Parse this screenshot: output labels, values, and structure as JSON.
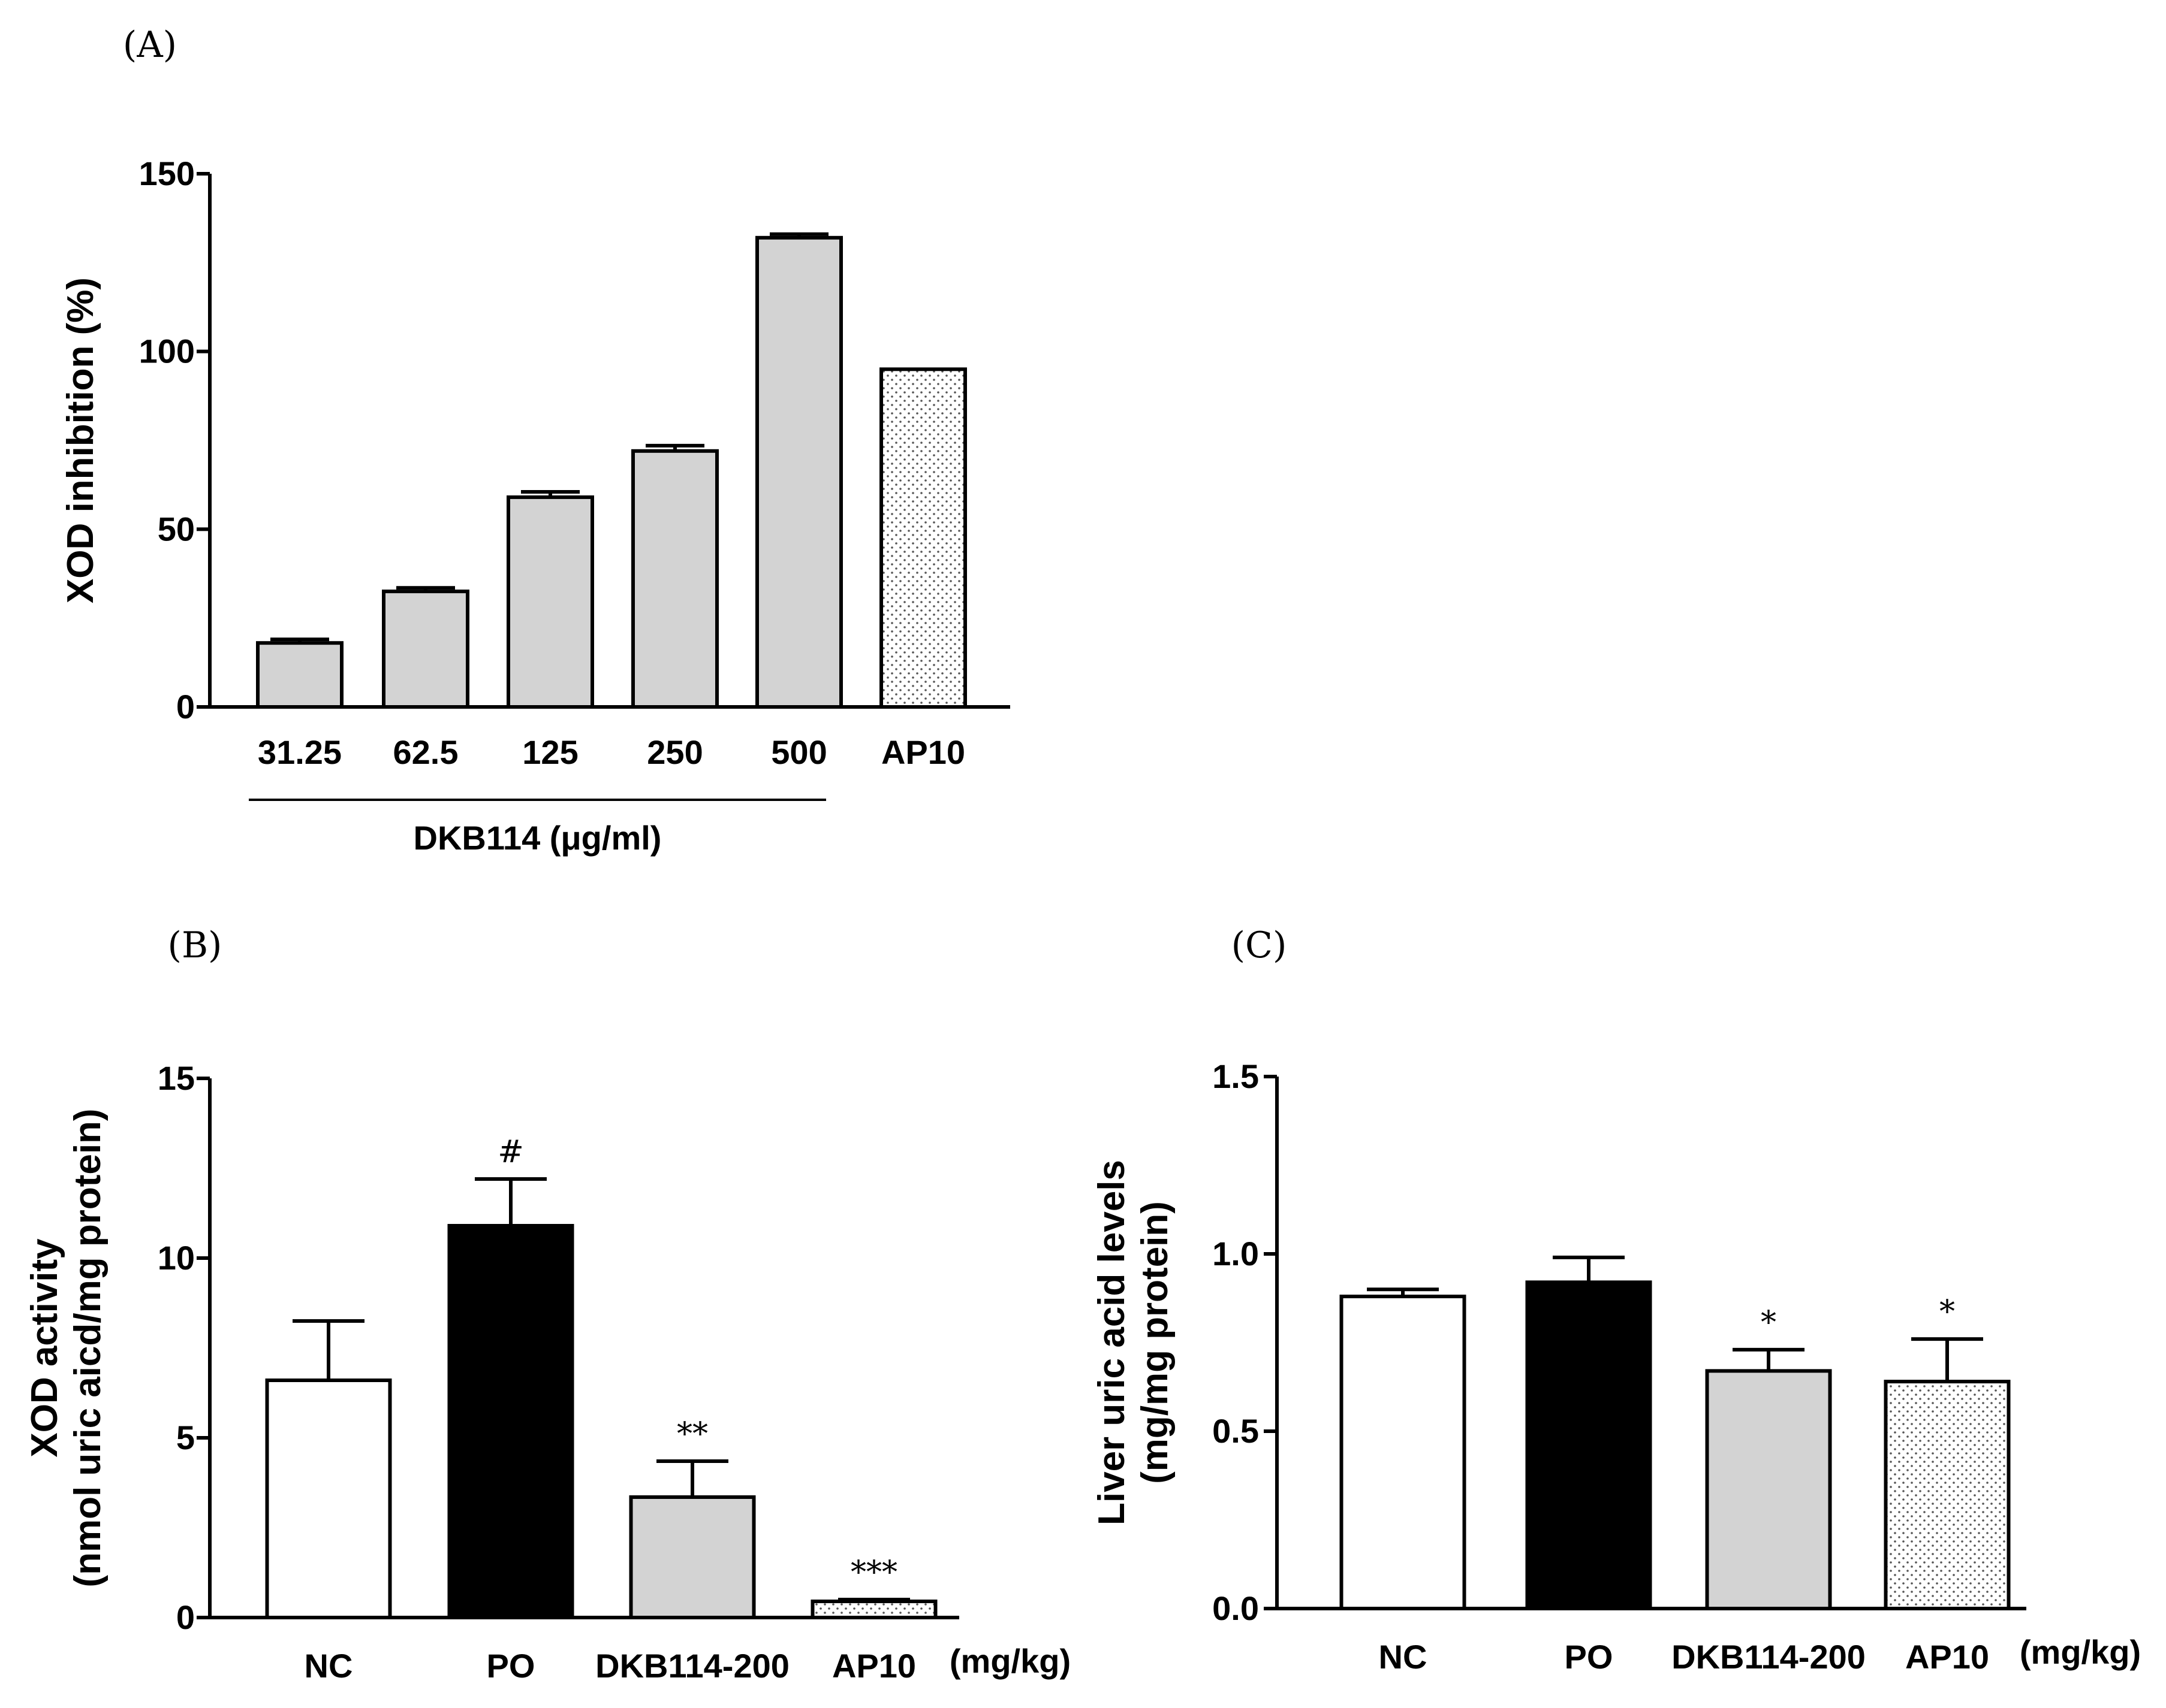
{
  "chart_data": [
    {
      "id": "A",
      "panel_label": "(A)",
      "type": "bar",
      "categories": [
        "31.25",
        "62.5",
        "125",
        "250",
        "500",
        "AP10"
      ],
      "values": [
        18,
        32.5,
        59,
        72,
        132,
        95
      ],
      "errors": [
        1,
        1,
        1.5,
        1.5,
        1,
        0
      ],
      "fills": [
        "gray",
        "gray",
        "gray",
        "gray",
        "gray",
        "dotted"
      ],
      "annotations": [
        "",
        "",
        "",
        "",
        "",
        ""
      ],
      "ylabel": [
        "XOD inhibition (%)"
      ],
      "xlabel": "DKB114  (μg/ml)",
      "unit_label": "",
      "group_span": [
        0,
        4
      ],
      "ylim": [
        0,
        150
      ],
      "yticks": [
        "0",
        "50",
        "100",
        "150"
      ]
    },
    {
      "id": "B",
      "panel_label": "(B)",
      "type": "bar",
      "categories": [
        "NC",
        "PO",
        "DKB114-200",
        "AP10"
      ],
      "values": [
        6.6,
        10.9,
        3.35,
        0.45
      ],
      "errors": [
        1.65,
        1.3,
        1.0,
        0.05
      ],
      "fills": [
        "white",
        "black",
        "gray",
        "dotted"
      ],
      "annotations": [
        "",
        "#",
        "**",
        "***"
      ],
      "ylabel": [
        "XOD activity",
        "(nmol uric aicd/mg protein)"
      ],
      "xlabel": "",
      "unit_label": "(mg/kg)",
      "ylim": [
        0,
        15
      ],
      "yticks": [
        "0",
        "5",
        "10",
        "15"
      ]
    },
    {
      "id": "C",
      "panel_label": "(C)",
      "type": "bar",
      "categories": [
        "NC",
        "PO",
        "DKB114-200",
        "AP10"
      ],
      "values": [
        0.88,
        0.92,
        0.67,
        0.64
      ],
      "errors": [
        0.02,
        0.07,
        0.06,
        0.12
      ],
      "fills": [
        "white",
        "black",
        "gray",
        "dotted"
      ],
      "annotations": [
        "",
        "",
        "*",
        "*"
      ],
      "ylabel": [
        "Liver  uric acid levels",
        "(mg/mg protein)"
      ],
      "xlabel": "",
      "unit_label": "(mg/kg)",
      "ylim": [
        0,
        1.5
      ],
      "yticks": [
        "0.0",
        "0.5",
        "1.0",
        "1.5"
      ]
    }
  ]
}
